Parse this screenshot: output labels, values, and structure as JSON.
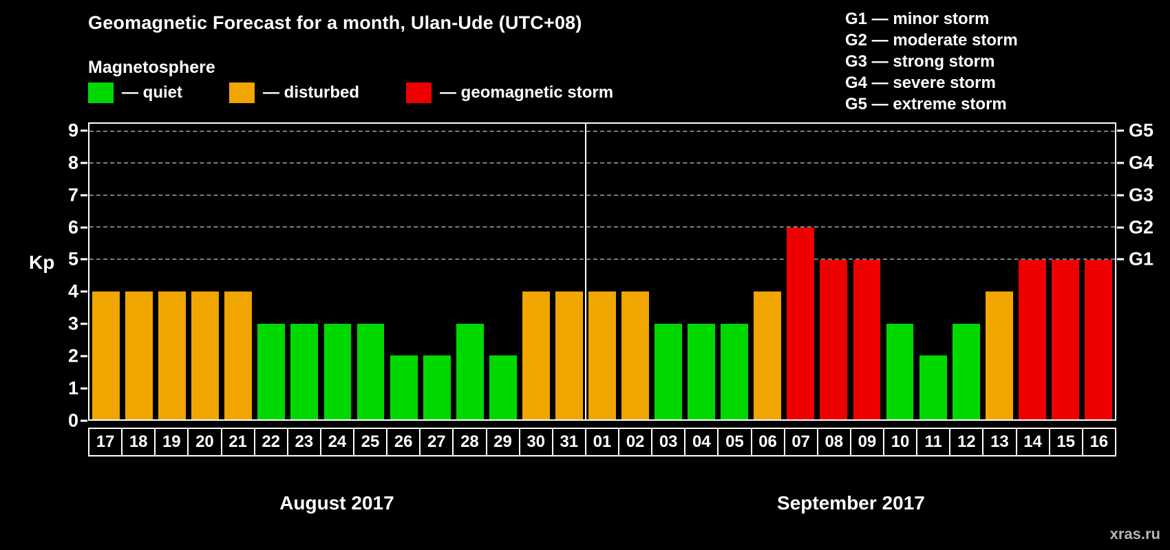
{
  "title": "Geomagnetic Forecast for a month, Ulan-Ude (UTC+08)",
  "legend": {
    "heading": "Magnetosphere",
    "items": [
      {
        "status": "quiet",
        "label": "— quiet"
      },
      {
        "status": "disturbed",
        "label": "— disturbed"
      },
      {
        "status": "storm",
        "label": "— geomagnetic storm"
      }
    ]
  },
  "colors": {
    "quiet": "#00d900",
    "disturbed": "#f0a500",
    "storm": "#ee0000",
    "background": "#000000",
    "text": "#ffffff"
  },
  "storm_scale": [
    {
      "label": "G1 — minor storm"
    },
    {
      "label": "G2 — moderate storm"
    },
    {
      "label": "G3 — strong storm"
    },
    {
      "label": "G4 — severe storm"
    },
    {
      "label": "G5 — extreme storm"
    }
  ],
  "watermark": "xras.ru",
  "chart_data": {
    "type": "bar",
    "title": "Geomagnetic Forecast for a month, Ulan-Ude (UTC+08)",
    "ylabel": "Kp",
    "ylim": [
      0,
      9
    ],
    "axis_max": 9.25,
    "yticks": [
      0,
      1,
      2,
      3,
      4,
      5,
      6,
      7,
      8,
      9
    ],
    "gridlines_kp": [
      5,
      6,
      7,
      8,
      9
    ],
    "right_axis": [
      {
        "label": "G1",
        "kp": 5
      },
      {
        "label": "G2",
        "kp": 6
      },
      {
        "label": "G3",
        "kp": 7
      },
      {
        "label": "G4",
        "kp": 8
      },
      {
        "label": "G5",
        "kp": 9
      }
    ],
    "legend_position": "top",
    "months": [
      {
        "label": "August 2017",
        "days": [
          {
            "day": "17",
            "kp": 4,
            "status": "disturbed"
          },
          {
            "day": "18",
            "kp": 4,
            "status": "disturbed"
          },
          {
            "day": "19",
            "kp": 4,
            "status": "disturbed"
          },
          {
            "day": "20",
            "kp": 4,
            "status": "disturbed"
          },
          {
            "day": "21",
            "kp": 4,
            "status": "disturbed"
          },
          {
            "day": "22",
            "kp": 3,
            "status": "quiet"
          },
          {
            "day": "23",
            "kp": 3,
            "status": "quiet"
          },
          {
            "day": "24",
            "kp": 3,
            "status": "quiet"
          },
          {
            "day": "25",
            "kp": 3,
            "status": "quiet"
          },
          {
            "day": "26",
            "kp": 2,
            "status": "quiet"
          },
          {
            "day": "27",
            "kp": 2,
            "status": "quiet"
          },
          {
            "day": "28",
            "kp": 3,
            "status": "quiet"
          },
          {
            "day": "29",
            "kp": 2,
            "status": "quiet"
          },
          {
            "day": "30",
            "kp": 4,
            "status": "disturbed"
          },
          {
            "day": "31",
            "kp": 4,
            "status": "disturbed"
          }
        ]
      },
      {
        "label": "September 2017",
        "days": [
          {
            "day": "01",
            "kp": 4,
            "status": "disturbed"
          },
          {
            "day": "02",
            "kp": 4,
            "status": "disturbed"
          },
          {
            "day": "03",
            "kp": 3,
            "status": "quiet"
          },
          {
            "day": "04",
            "kp": 3,
            "status": "quiet"
          },
          {
            "day": "05",
            "kp": 3,
            "status": "quiet"
          },
          {
            "day": "06",
            "kp": 4,
            "status": "disturbed"
          },
          {
            "day": "07",
            "kp": 6,
            "status": "storm"
          },
          {
            "day": "08",
            "kp": 5,
            "status": "storm"
          },
          {
            "day": "09",
            "kp": 5,
            "status": "storm"
          },
          {
            "day": "10",
            "kp": 3,
            "status": "quiet"
          },
          {
            "day": "11",
            "kp": 2,
            "status": "quiet"
          },
          {
            "day": "12",
            "kp": 3,
            "status": "quiet"
          },
          {
            "day": "13",
            "kp": 4,
            "status": "disturbed"
          },
          {
            "day": "14",
            "kp": 5,
            "status": "storm"
          },
          {
            "day": "15",
            "kp": 5,
            "status": "storm"
          },
          {
            "day": "16",
            "kp": 5,
            "status": "storm"
          }
        ]
      }
    ]
  }
}
